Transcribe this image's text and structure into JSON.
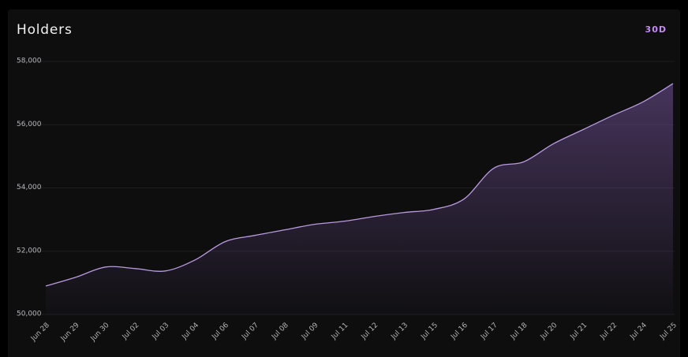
{
  "chart_data": {
    "type": "line",
    "title": "Holders",
    "period": "30D",
    "categories": [
      "Jun 28",
      "Jun 29",
      "Jun 30",
      "Jul 02",
      "Jul 03",
      "Jul 04",
      "Jul 06",
      "Jul 07",
      "Jul 08",
      "Jul 09",
      "Jul 11",
      "Jul 12",
      "Jul 13",
      "Jul 15",
      "Jul 16",
      "Jul 17",
      "Jul 18",
      "Jul 20",
      "Jul 21",
      "Jul 22",
      "Jul 24",
      "Jul 25"
    ],
    "values": [
      50900,
      51175,
      51500,
      51450,
      51375,
      51725,
      52300,
      52500,
      52675,
      52850,
      52950,
      53100,
      53225,
      53325,
      53650,
      54625,
      54825,
      55400,
      55850,
      56300,
      56725,
      57300
    ],
    "color": "#b99be0",
    "ylim": [
      50000,
      58000
    ],
    "yticks": [
      {
        "value": 50000,
        "label": "50,000"
      },
      {
        "value": 52000,
        "label": "52,000"
      },
      {
        "value": 54000,
        "label": "54,000"
      },
      {
        "value": 56000,
        "label": "56,000"
      },
      {
        "value": 58000,
        "label": "58,000"
      }
    ],
    "grid": true
  }
}
